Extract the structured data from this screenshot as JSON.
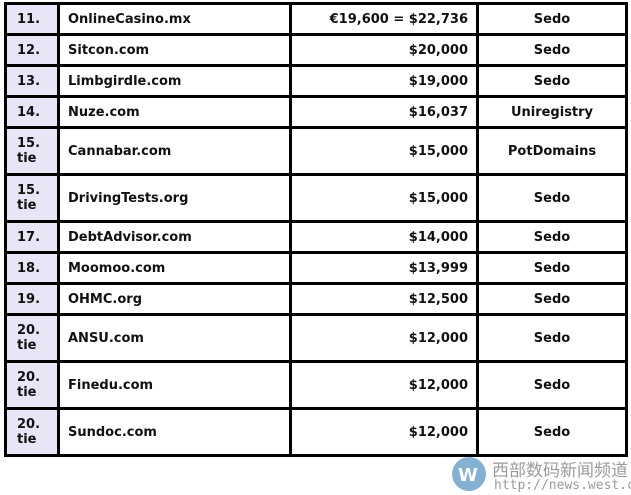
{
  "rows": [
    {
      "rank": "11.",
      "domain": "OnlineCasino.mx",
      "price": "€19,600 = $22,736",
      "registrar": "Sedo"
    },
    {
      "rank": "12.",
      "domain": "Sitcon.com",
      "price": "$20,000",
      "registrar": "Sedo"
    },
    {
      "rank": "13.",
      "domain": "Limbgirdle.com",
      "price": "$19,000",
      "registrar": "Sedo"
    },
    {
      "rank": "14.",
      "domain": "Nuze.com",
      "price": "$16,037",
      "registrar": "Uniregistry"
    },
    {
      "rank": "15. tie",
      "domain": "Cannabar.com",
      "price": "$15,000",
      "registrar": "PotDomains"
    },
    {
      "rank": "15. tie",
      "domain": "DrivingTests.org",
      "price": "$15,000",
      "registrar": "Sedo"
    },
    {
      "rank": "17.",
      "domain": "DebtAdvisor.com",
      "price": "$14,000",
      "registrar": "Sedo"
    },
    {
      "rank": "18.",
      "domain": "Moomoo.com",
      "price": "$13,999",
      "registrar": "Sedo"
    },
    {
      "rank": "19.",
      "domain": "OHMC.org",
      "price": "$12,500",
      "registrar": "Sedo"
    },
    {
      "rank": "20. tie",
      "domain": "ANSU.com",
      "price": "$12,000",
      "registrar": "Sedo"
    },
    {
      "rank": "20. tie",
      "domain": "Finedu.com",
      "price": "$12,000",
      "registrar": "Sedo"
    },
    {
      "rank": "20. tie",
      "domain": "Sundoc.com",
      "price": "$12,000",
      "registrar": "Sedo"
    }
  ],
  "watermark": {
    "title": "西部数码新闻频道",
    "url": "http://news.west.cn",
    "icon": "wave-logo-icon"
  }
}
